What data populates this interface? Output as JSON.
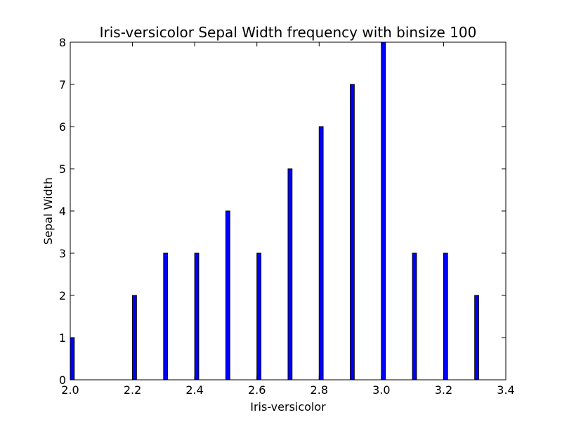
{
  "chart_data": {
    "type": "bar",
    "title": "Iris-versicolor Sepal Width frequency with binsize 100",
    "xlabel": "Iris-versicolor",
    "ylabel": "Sepal Width",
    "xlim": [
      2.0,
      3.4
    ],
    "ylim": [
      0,
      8
    ],
    "xticks": [
      "2.0",
      "2.2",
      "2.4",
      "2.6",
      "2.8",
      "3.0",
      "3.2",
      "3.4"
    ],
    "yticks": [
      "0",
      "1",
      "2",
      "3",
      "4",
      "5",
      "6",
      "7",
      "8"
    ],
    "bin_width": 0.013,
    "x": [
      2.0,
      2.2,
      2.3,
      2.4,
      2.5,
      2.6,
      2.7,
      2.8,
      2.9,
      3.0,
      3.1,
      3.2,
      3.3
    ],
    "values": [
      1,
      2,
      3,
      3,
      4,
      3,
      5,
      6,
      7,
      8,
      3,
      3,
      2
    ],
    "bar_color": "#0000ff",
    "edge_color": "#000000",
    "grid": false,
    "legend": "none"
  }
}
